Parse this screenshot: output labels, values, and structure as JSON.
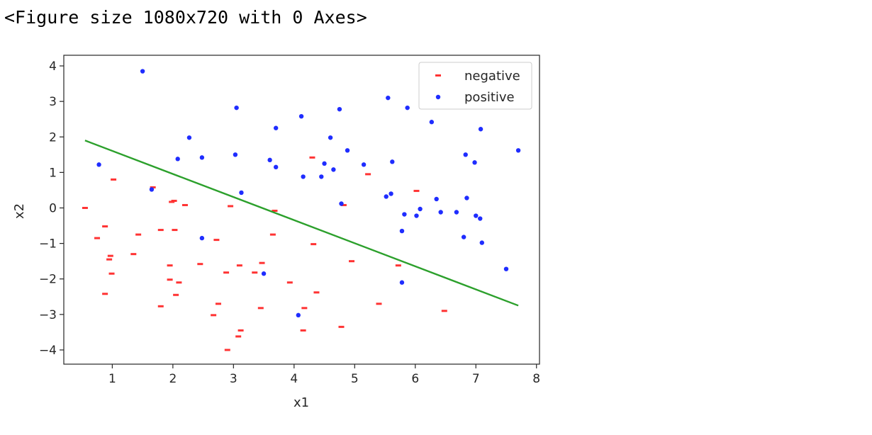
{
  "output_text": "<Figure size 1080x720 with 0 Axes>",
  "colors": {
    "negative": "#ff3333",
    "positive": "#1f2dff",
    "line": "#2ca02c"
  },
  "chart_data": {
    "type": "scatter",
    "xlabel": "x1",
    "ylabel": "x2",
    "xlim": [
      0.2,
      8.05
    ],
    "ylim": [
      -4.4,
      4.3
    ],
    "xticks": [
      1,
      2,
      3,
      4,
      5,
      6,
      7,
      8
    ],
    "yticks": [
      -4,
      -3,
      -2,
      -1,
      0,
      1,
      2,
      3,
      4
    ],
    "xtick_labels": [
      "1",
      "2",
      "3",
      "4",
      "5",
      "6",
      "7",
      "8"
    ],
    "ytick_labels": [
      "−4",
      "−3",
      "−2",
      "−1",
      "0",
      "1",
      "2",
      "3",
      "4"
    ],
    "legend_position": "top-right",
    "series": [
      {
        "name": "negative",
        "marker": "_",
        "points": [
          [
            0.55,
            0.0
          ],
          [
            0.75,
            -0.85
          ],
          [
            0.88,
            -0.52
          ],
          [
            0.88,
            -2.42
          ],
          [
            0.95,
            -1.45
          ],
          [
            0.97,
            -1.35
          ],
          [
            0.99,
            -1.85
          ],
          [
            1.02,
            0.8
          ],
          [
            1.35,
            -1.3
          ],
          [
            1.43,
            -0.75
          ],
          [
            1.67,
            0.58
          ],
          [
            1.8,
            -0.62
          ],
          [
            1.8,
            -2.77
          ],
          [
            1.95,
            -1.62
          ],
          [
            1.95,
            -2.02
          ],
          [
            1.98,
            0.17
          ],
          [
            2.02,
            0.2
          ],
          [
            2.03,
            -0.62
          ],
          [
            2.05,
            -2.45
          ],
          [
            2.1,
            -2.1
          ],
          [
            2.2,
            0.08
          ],
          [
            2.45,
            -1.58
          ],
          [
            2.67,
            -3.02
          ],
          [
            2.72,
            -0.9
          ],
          [
            2.75,
            -2.7
          ],
          [
            2.88,
            -1.82
          ],
          [
            2.9,
            -4.0
          ],
          [
            2.95,
            0.05
          ],
          [
            3.08,
            -3.62
          ],
          [
            3.1,
            -1.62
          ],
          [
            3.12,
            -3.45
          ],
          [
            3.35,
            -1.82
          ],
          [
            3.45,
            -2.82
          ],
          [
            3.47,
            -1.55
          ],
          [
            3.65,
            -0.75
          ],
          [
            3.68,
            -0.08
          ],
          [
            3.93,
            -2.1
          ],
          [
            4.15,
            -3.45
          ],
          [
            4.17,
            -2.82
          ],
          [
            4.3,
            1.42
          ],
          [
            4.32,
            -1.02
          ],
          [
            4.37,
            -2.38
          ],
          [
            4.78,
            -3.35
          ],
          [
            4.82,
            0.08
          ],
          [
            4.95,
            -1.5
          ],
          [
            5.22,
            0.95
          ],
          [
            5.4,
            -2.7
          ],
          [
            5.72,
            -1.62
          ],
          [
            6.02,
            0.48
          ],
          [
            6.48,
            -2.9
          ]
        ]
      },
      {
        "name": "positive",
        "marker": ".",
        "points": [
          [
            0.78,
            1.22
          ],
          [
            1.5,
            3.85
          ],
          [
            1.65,
            0.52
          ],
          [
            2.08,
            1.38
          ],
          [
            2.27,
            1.98
          ],
          [
            2.48,
            1.42
          ],
          [
            2.48,
            -0.85
          ],
          [
            3.03,
            1.5
          ],
          [
            3.05,
            2.82
          ],
          [
            3.13,
            0.43
          ],
          [
            3.5,
            -1.85
          ],
          [
            3.6,
            1.35
          ],
          [
            3.7,
            2.25
          ],
          [
            3.7,
            1.15
          ],
          [
            4.07,
            -3.02
          ],
          [
            4.12,
            2.58
          ],
          [
            4.15,
            0.88
          ],
          [
            4.45,
            0.88
          ],
          [
            4.5,
            1.25
          ],
          [
            4.6,
            1.98
          ],
          [
            4.65,
            1.08
          ],
          [
            4.75,
            2.78
          ],
          [
            4.78,
            0.12
          ],
          [
            4.88,
            1.62
          ],
          [
            5.15,
            1.22
          ],
          [
            5.52,
            0.32
          ],
          [
            5.55,
            3.1
          ],
          [
            5.6,
            0.4
          ],
          [
            5.62,
            1.3
          ],
          [
            5.78,
            -0.65
          ],
          [
            5.78,
            -2.1
          ],
          [
            5.82,
            -0.18
          ],
          [
            5.87,
            2.82
          ],
          [
            6.02,
            -0.22
          ],
          [
            6.08,
            -0.03
          ],
          [
            6.27,
            2.42
          ],
          [
            6.35,
            0.25
          ],
          [
            6.42,
            -0.12
          ],
          [
            6.68,
            -0.12
          ],
          [
            6.8,
            -0.82
          ],
          [
            6.83,
            1.5
          ],
          [
            6.85,
            0.28
          ],
          [
            6.98,
            1.28
          ],
          [
            7.0,
            -0.22
          ],
          [
            7.07,
            -0.3
          ],
          [
            7.08,
            2.22
          ],
          [
            7.1,
            -0.98
          ],
          [
            7.5,
            -1.72
          ],
          [
            7.7,
            1.62
          ]
        ]
      },
      {
        "marker": "line",
        "points": [
          [
            0.55,
            1.9
          ],
          [
            7.7,
            -2.75
          ]
        ]
      }
    ]
  }
}
